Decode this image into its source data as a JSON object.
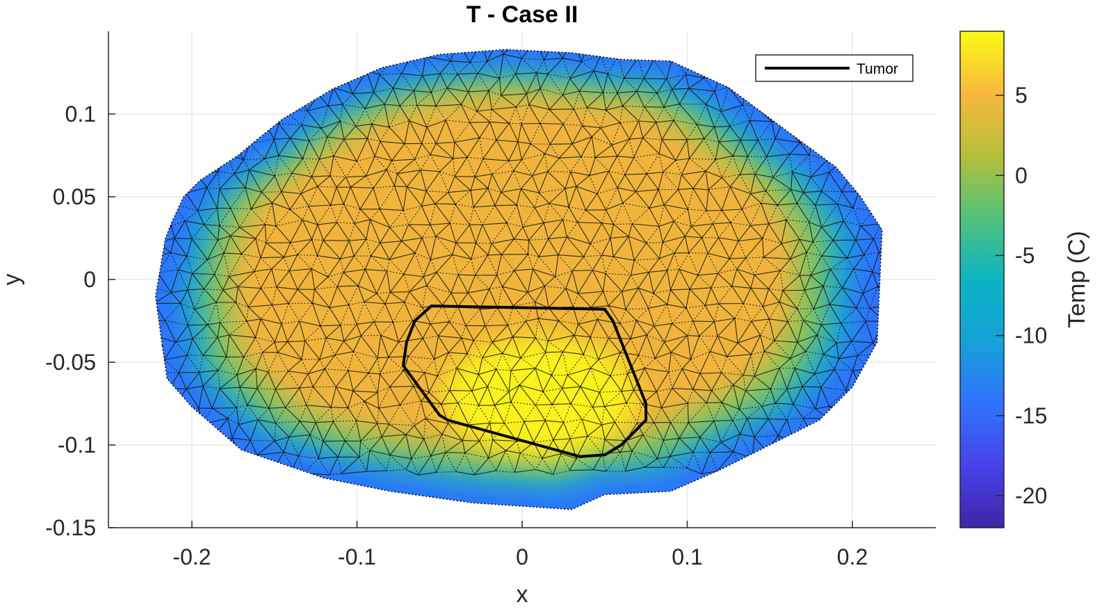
{
  "chart_data": {
    "type": "heatmap",
    "title": "T - Case II",
    "xlabel": "x",
    "ylabel": "y",
    "xlim": [
      -0.25,
      0.25
    ],
    "ylim": [
      -0.15,
      0.15
    ],
    "xticks": [
      "-0.2",
      "-0.1",
      "0",
      "0.1",
      "0.2"
    ],
    "xtick_values": [
      -0.2,
      -0.1,
      0,
      0.1,
      0.2
    ],
    "yticks": [
      "0.1",
      "0.05",
      "0",
      "-0.05",
      "-0.1",
      "-0.15"
    ],
    "ytick_values": [
      0.1,
      0.05,
      0,
      -0.05,
      -0.1,
      -0.15
    ],
    "grid": true,
    "colorbar": {
      "label": "Temp (C)",
      "range": [
        -22,
        9
      ],
      "ticks": [
        "5",
        "0",
        "-5",
        "-10",
        "-15",
        "-20"
      ],
      "tick_values": [
        5,
        0,
        -5,
        -10,
        -15,
        -20
      ],
      "colormap": "parula"
    },
    "legend": {
      "location": "top-right",
      "entries": [
        "Tumor"
      ]
    },
    "domain_boundary": [
      [
        -0.218,
        -0.04
      ],
      [
        -0.222,
        -0.01
      ],
      [
        -0.216,
        0.025
      ],
      [
        -0.212,
        0.035
      ],
      [
        -0.205,
        0.05
      ],
      [
        -0.195,
        0.06
      ],
      [
        -0.172,
        0.075
      ],
      [
        -0.16,
        0.085
      ],
      [
        -0.145,
        0.097
      ],
      [
        -0.115,
        0.115
      ],
      [
        -0.085,
        0.128
      ],
      [
        -0.05,
        0.136
      ],
      [
        -0.01,
        0.139
      ],
      [
        0.03,
        0.137
      ],
      [
        0.06,
        0.133
      ],
      [
        0.09,
        0.132
      ],
      [
        0.125,
        0.116
      ],
      [
        0.16,
        0.09
      ],
      [
        0.19,
        0.068
      ],
      [
        0.205,
        0.05
      ],
      [
        0.218,
        0.03
      ],
      [
        0.215,
        -0.038
      ],
      [
        0.2,
        -0.065
      ],
      [
        0.18,
        -0.085
      ],
      [
        0.15,
        -0.1
      ],
      [
        0.12,
        -0.115
      ],
      [
        0.09,
        -0.128
      ],
      [
        0.05,
        -0.13
      ],
      [
        0.03,
        -0.139
      ],
      [
        -0.03,
        -0.135
      ],
      [
        -0.08,
        -0.128
      ],
      [
        -0.12,
        -0.12
      ],
      [
        -0.17,
        -0.103
      ],
      [
        -0.2,
        -0.077
      ],
      [
        -0.215,
        -0.06
      ]
    ],
    "tumor_boundary": [
      [
        -0.055,
        -0.016
      ],
      [
        0.05,
        -0.018
      ],
      [
        0.055,
        -0.025
      ],
      [
        0.075,
        -0.075
      ],
      [
        0.075,
        -0.085
      ],
      [
        0.06,
        -0.1
      ],
      [
        0.05,
        -0.106
      ],
      [
        0.035,
        -0.107
      ],
      [
        -0.005,
        -0.096
      ],
      [
        -0.045,
        -0.085
      ],
      [
        -0.05,
        -0.082
      ],
      [
        -0.072,
        -0.052
      ],
      [
        -0.07,
        -0.038
      ],
      [
        -0.065,
        -0.025
      ]
    ],
    "temperature_field": {
      "description_values": {
        "tumor_max": 9,
        "interior_typical": 3,
        "outer_boundary": -18
      }
    }
  }
}
